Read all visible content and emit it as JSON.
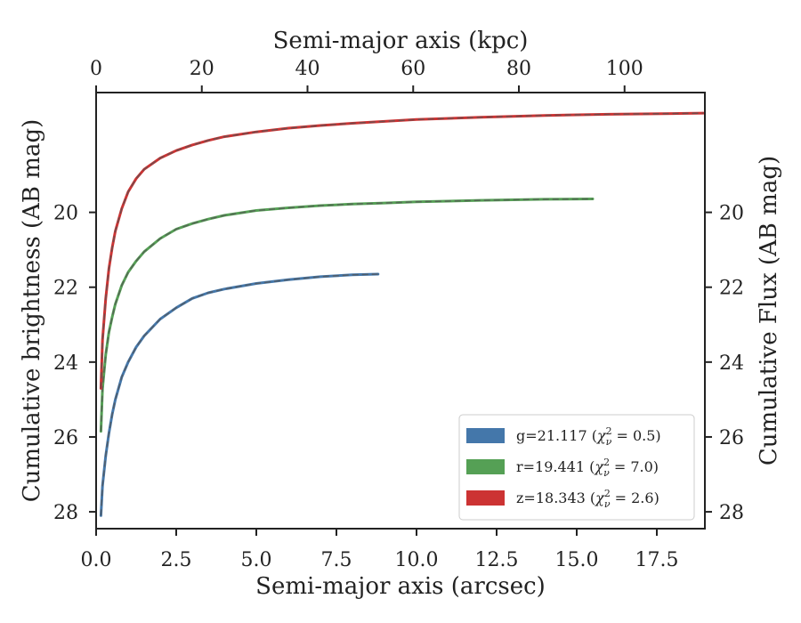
{
  "chart_data": {
    "type": "line",
    "xlabel": "Semi-major axis (arcsec)",
    "x2label": "Semi-major axis (kpc)",
    "ylabel": "Cumulative brightness (AB mag)",
    "y2label": "Cumulative Flux (AB mag)",
    "xlim": [
      0.0,
      19.0
    ],
    "x2lim": [
      0,
      115.2
    ],
    "ylim": [
      28.45,
      16.8
    ],
    "y_inverted": true,
    "x_ticks": [
      "0.0",
      "2.5",
      "5.0",
      "7.5",
      "10.0",
      "12.5",
      "15.0",
      "17.5"
    ],
    "x2_ticks": [
      "0",
      "20",
      "40",
      "60",
      "80",
      "100"
    ],
    "y_ticks": [
      "20",
      "22",
      "24",
      "26",
      "28"
    ],
    "legend_position": "lower right",
    "grid": false,
    "series": [
      {
        "name": "g=21.117 (χ²ν=0.5)",
        "legend_parts": {
          "base": "g=21.117 (",
          "chi": "χ",
          "sup": "2",
          "sub": "ν",
          "tail": " = 0.5)"
        },
        "color": "#4477aa",
        "x": [
          0.15,
          0.2,
          0.3,
          0.4,
          0.5,
          0.6,
          0.8,
          1.0,
          1.25,
          1.5,
          2.0,
          2.5,
          3.0,
          3.5,
          4.0,
          5.0,
          6.0,
          7.0,
          8.0,
          8.8
        ],
        "y": [
          28.1,
          27.3,
          26.5,
          25.9,
          25.4,
          25.0,
          24.4,
          24.0,
          23.6,
          23.3,
          22.85,
          22.55,
          22.3,
          22.15,
          22.05,
          21.9,
          21.8,
          21.72,
          21.67,
          21.65
        ]
      },
      {
        "name": "r=19.441 (χ²ν=7.0)",
        "legend_parts": {
          "base": "r=19.441 (",
          "chi": "χ",
          "sup": "2",
          "sub": "ν",
          "tail": " = 7.0)"
        },
        "color": "#55a055",
        "x": [
          0.15,
          0.2,
          0.3,
          0.4,
          0.5,
          0.6,
          0.8,
          1.0,
          1.25,
          1.5,
          2.0,
          2.5,
          3.0,
          3.5,
          4.0,
          5.0,
          6.0,
          7.0,
          8.0,
          9.0,
          10.0,
          12.0,
          14.0,
          15.5
        ],
        "y": [
          25.85,
          24.7,
          23.8,
          23.2,
          22.8,
          22.45,
          21.95,
          21.6,
          21.3,
          21.05,
          20.7,
          20.45,
          20.3,
          20.18,
          20.08,
          19.95,
          19.88,
          19.82,
          19.78,
          19.75,
          19.72,
          19.68,
          19.65,
          19.64
        ]
      },
      {
        "name": "z=18.343 (χ²ν=2.6)",
        "legend_parts": {
          "base": "z=18.343 (",
          "chi": "χ",
          "sup": "2",
          "sub": "ν",
          "tail": " = 2.6)"
        },
        "color": "#cc3333",
        "x": [
          0.15,
          0.2,
          0.3,
          0.4,
          0.5,
          0.6,
          0.8,
          1.0,
          1.25,
          1.5,
          2.0,
          2.5,
          3.0,
          3.5,
          4.0,
          5.0,
          6.0,
          7.0,
          8.0,
          10.0,
          12.0,
          14.0,
          16.0,
          18.0,
          18.95
        ],
        "y": [
          24.7,
          23.4,
          22.3,
          21.5,
          20.95,
          20.5,
          19.9,
          19.45,
          19.1,
          18.85,
          18.55,
          18.35,
          18.2,
          18.08,
          17.98,
          17.85,
          17.75,
          17.68,
          17.62,
          17.52,
          17.46,
          17.41,
          17.38,
          17.36,
          17.35
        ]
      }
    ]
  }
}
